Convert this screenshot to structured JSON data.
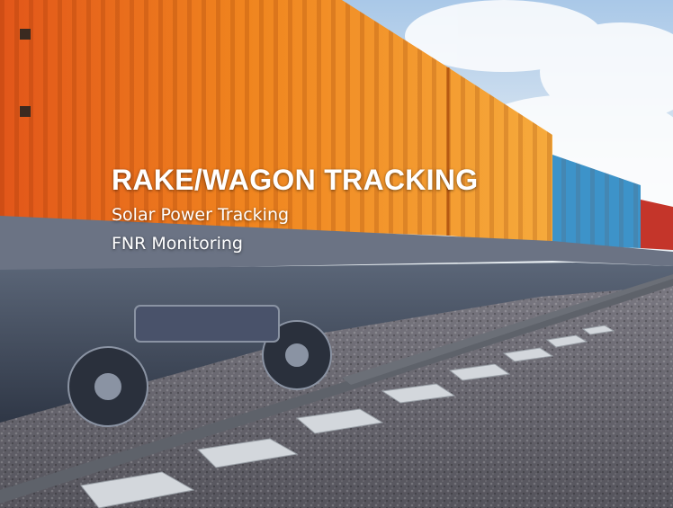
{
  "hero": {
    "title": "RAKE/WAGON TRACKING",
    "lines": [
      "Solar Power Tracking",
      "FNR Monitoring"
    ]
  },
  "scene": {
    "subject": "freight train with shipping containers on railway track",
    "colors": {
      "sky_top": "#b8d3ee",
      "sky_bottom": "#e8f0f6",
      "orange_container": "#ea7a1a",
      "orange_light": "#f6a43a",
      "blue_container": "#3b8fc6",
      "red_container": "#c23224",
      "undercarriage": "#4c5566",
      "rail": "#5b5f66",
      "sleeper": "#cfd3d8",
      "ballast": "#6e6c75"
    }
  }
}
